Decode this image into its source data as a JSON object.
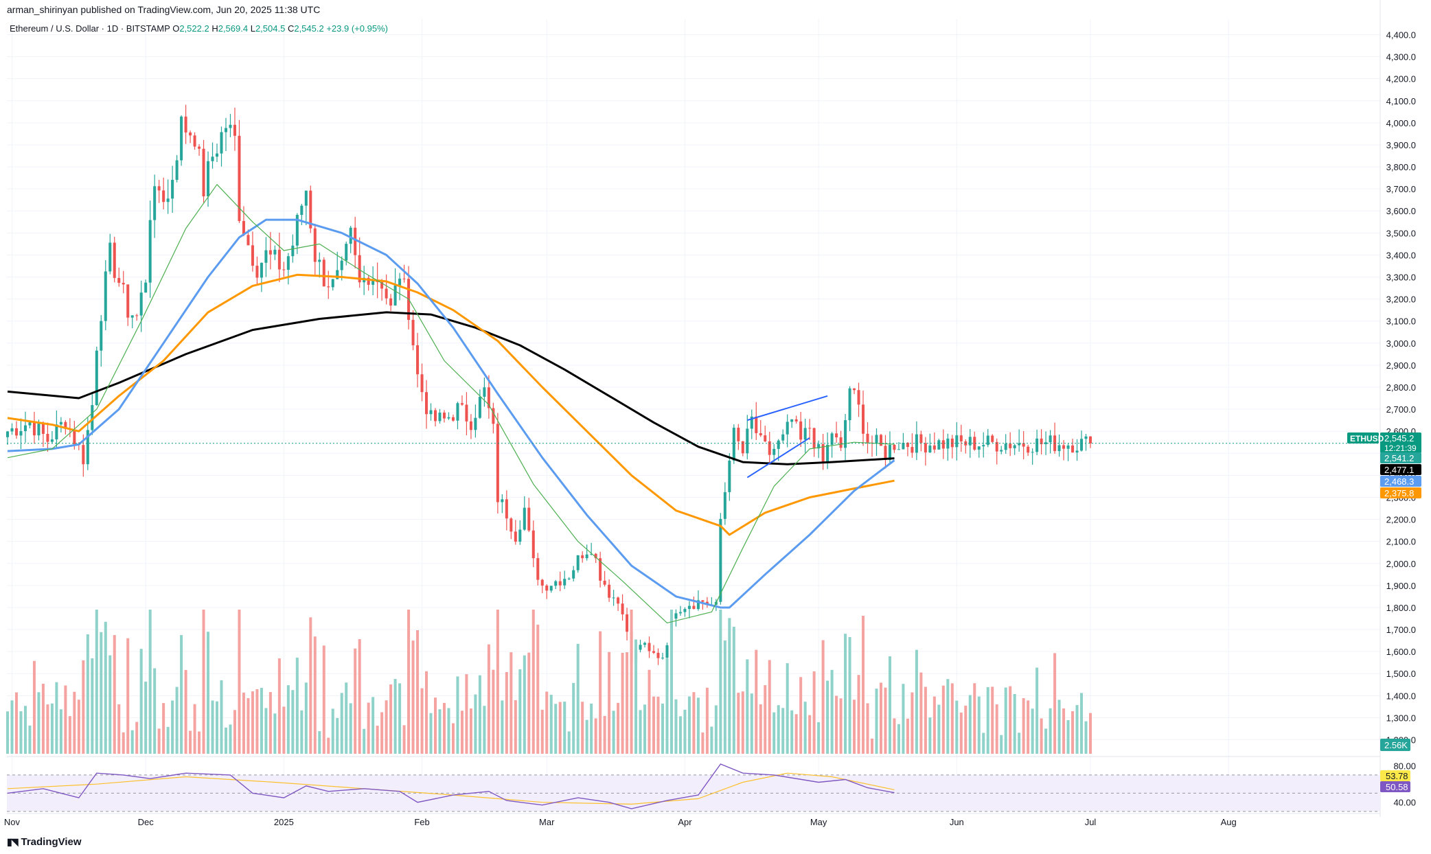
{
  "header": {
    "published_line": "arman_shirinyan published on TradingView.com, Jun 20, 2025 11:38 UTC"
  },
  "symbol": {
    "name": "Ethereum / U.S. Dollar · 1D · BITSTAMP",
    "o_label": "O",
    "o": "2,522.2",
    "h_label": "H",
    "h": "2,569.4",
    "l_label": "L",
    "l": "2,504.5",
    "c_label": "C",
    "c": "2,545.2",
    "change": "+23.9 (+0.95%)"
  },
  "footer": {
    "logo_text": "TradingView"
  },
  "colors": {
    "up": "#26a69a",
    "down": "#ef5350",
    "vol_up": "#8fd2ca",
    "vol_down": "#f5a3a1",
    "sma_black": "#000000",
    "sma_orange": "#ff9800",
    "sma_blue": "#5b9cf0",
    "sma_green": "#4caf50",
    "rsi": "#7e57c2",
    "rsi_ma": "#fbc02d"
  },
  "chart_data": [
    {
      "type": "candlestick",
      "title": "Ethereum / U.S. Dollar · 1D · BITSTAMP",
      "y_ticks": [
        "4,400.0",
        "4,300.0",
        "4,200.0",
        "4,100.0",
        "4,000.0",
        "3,900.0",
        "3,800.0",
        "3,700.0",
        "3,600.0",
        "3,500.0",
        "3,400.0",
        "3,300.0",
        "3,200.0",
        "3,100.0",
        "3,000.0",
        "2,900.0",
        "2,800.0",
        "2,700.0",
        "2,600.0",
        "2,500.0",
        "2,400.0",
        "2,300.0",
        "2,200.0",
        "2,100.0",
        "2,000.0",
        "1,900.0",
        "1,800.0",
        "1,700.0",
        "1,600.0",
        "1,500.0",
        "1,400.0",
        "1,300.0",
        "1,200.0"
      ],
      "y_tick_values": [
        4400,
        4300,
        4200,
        4100,
        4000,
        3900,
        3800,
        3700,
        3600,
        3500,
        3400,
        3300,
        3200,
        3100,
        3000,
        2900,
        2800,
        2700,
        2600,
        2500,
        2400,
        2300,
        2200,
        2100,
        2000,
        1900,
        1800,
        1700,
        1600,
        1500,
        1400,
        1300,
        1200
      ],
      "ylim": [
        1130,
        4470
      ],
      "x_labels": [
        "Nov",
        "Dec",
        "2025",
        "Feb",
        "Mar",
        "Apr",
        "May",
        "Jun",
        "Jul",
        "Aug"
      ],
      "x_label_days": [
        1,
        31,
        62,
        93,
        121,
        152,
        182,
        213,
        243,
        274
      ],
      "x_start_date": "2024-10-20",
      "last_day": 243,
      "price_points": [
        {
          "d": 0,
          "p": 2600
        },
        {
          "d": 5,
          "p": 2640
        },
        {
          "d": 9,
          "p": 2560
        },
        {
          "d": 13,
          "p": 2650
        },
        {
          "d": 17,
          "p": 2480
        },
        {
          "d": 19,
          "p": 2720
        },
        {
          "d": 20,
          "p": 3000
        },
        {
          "d": 21,
          "p": 3150
        },
        {
          "d": 23,
          "p": 3400
        },
        {
          "d": 25,
          "p": 3280
        },
        {
          "d": 27,
          "p": 3150
        },
        {
          "d": 29,
          "p": 3120
        },
        {
          "d": 31,
          "p": 3300
        },
        {
          "d": 32,
          "p": 3600
        },
        {
          "d": 34,
          "p": 3700
        },
        {
          "d": 36,
          "p": 3650
        },
        {
          "d": 39,
          "p": 3990
        },
        {
          "d": 42,
          "p": 3950
        },
        {
          "d": 44,
          "p": 3700
        },
        {
          "d": 46,
          "p": 3850
        },
        {
          "d": 49,
          "p": 3990
        },
        {
          "d": 51,
          "p": 3920
        },
        {
          "d": 52,
          "p": 3600
        },
        {
          "d": 54,
          "p": 3450
        },
        {
          "d": 56,
          "p": 3350
        },
        {
          "d": 58,
          "p": 3400
        },
        {
          "d": 60,
          "p": 3370
        },
        {
          "d": 62,
          "p": 3340
        },
        {
          "d": 64,
          "p": 3450
        },
        {
          "d": 66,
          "p": 3630
        },
        {
          "d": 67,
          "p": 3700
        },
        {
          "d": 69,
          "p": 3400
        },
        {
          "d": 71,
          "p": 3300
        },
        {
          "d": 73,
          "p": 3260
        },
        {
          "d": 75,
          "p": 3320
        },
        {
          "d": 77,
          "p": 3480
        },
        {
          "d": 79,
          "p": 3260
        },
        {
          "d": 81,
          "p": 3320
        },
        {
          "d": 84,
          "p": 3280
        },
        {
          "d": 86,
          "p": 3150
        },
        {
          "d": 88,
          "p": 3320
        },
        {
          "d": 90,
          "p": 3160
        },
        {
          "d": 92,
          "p": 2850
        },
        {
          "d": 95,
          "p": 2650
        },
        {
          "d": 98,
          "p": 2650
        },
        {
          "d": 101,
          "p": 2700
        },
        {
          "d": 104,
          "p": 2650
        },
        {
          "d": 107,
          "p": 2780
        },
        {
          "d": 109,
          "p": 2600
        },
        {
          "d": 110,
          "p": 2300
        },
        {
          "d": 112,
          "p": 2230
        },
        {
          "d": 114,
          "p": 2130
        },
        {
          "d": 116,
          "p": 2250
        },
        {
          "d": 118,
          "p": 2000
        },
        {
          "d": 120,
          "p": 1900
        },
        {
          "d": 123,
          "p": 1920
        },
        {
          "d": 126,
          "p": 1950
        },
        {
          "d": 129,
          "p": 2050
        },
        {
          "d": 131,
          "p": 2080
        },
        {
          "d": 133,
          "p": 1950
        },
        {
          "d": 135,
          "p": 1870
        },
        {
          "d": 138,
          "p": 1800
        },
        {
          "d": 140,
          "p": 1550
        },
        {
          "d": 142,
          "p": 1640
        },
        {
          "d": 144,
          "p": 1590
        },
        {
          "d": 147,
          "p": 1580
        },
        {
          "d": 150,
          "p": 1800
        },
        {
          "d": 153,
          "p": 1820
        },
        {
          "d": 156,
          "p": 1830
        },
        {
          "d": 159,
          "p": 1800
        },
        {
          "d": 160,
          "p": 2200
        },
        {
          "d": 161,
          "p": 2330
        },
        {
          "d": 162,
          "p": 2500
        },
        {
          "d": 163,
          "p": 2580
        },
        {
          "d": 165,
          "p": 2500
        },
        {
          "d": 167,
          "p": 2650
        },
        {
          "d": 169,
          "p": 2540
        },
        {
          "d": 171,
          "p": 2500
        },
        {
          "d": 174,
          "p": 2560
        },
        {
          "d": 176,
          "p": 2650
        },
        {
          "d": 178,
          "p": 2550
        },
        {
          "d": 180,
          "p": 2620
        },
        {
          "d": 182,
          "p": 2500
        },
        {
          "d": 183,
          "p": 2450
        },
        {
          "d": 185,
          "p": 2600
        },
        {
          "d": 187,
          "p": 2500
        },
        {
          "d": 189,
          "p": 2800
        },
        {
          "d": 191,
          "p": 2700
        },
        {
          "d": 193,
          "p": 2560
        },
        {
          "d": 195,
          "p": 2540
        },
        {
          "d": 197,
          "p": 2500
        },
        {
          "d": 199,
          "p": 2545.2
        }
      ],
      "moving_averages": [
        {
          "color": "#000000",
          "points": [
            [
              0,
              2780
            ],
            [
              16,
              2750
            ],
            [
              25,
              2820
            ],
            [
              40,
              2950
            ],
            [
              55,
              3060
            ],
            [
              70,
              3110
            ],
            [
              85,
              3140
            ],
            [
              95,
              3130
            ],
            [
              105,
              3070
            ],
            [
              115,
              2990
            ],
            [
              125,
              2880
            ],
            [
              135,
              2760
            ],
            [
              145,
              2640
            ],
            [
              155,
              2530
            ],
            [
              165,
              2460
            ],
            [
              175,
              2450
            ],
            [
              185,
              2460
            ],
            [
              199,
              2477.1
            ]
          ]
        },
        {
          "color": "#ff9800",
          "points": [
            [
              0,
              2660
            ],
            [
              10,
              2630
            ],
            [
              16,
              2600
            ],
            [
              25,
              2760
            ],
            [
              35,
              2920
            ],
            [
              45,
              3140
            ],
            [
              55,
              3260
            ],
            [
              65,
              3310
            ],
            [
              75,
              3300
            ],
            [
              85,
              3280
            ],
            [
              92,
              3230
            ],
            [
              100,
              3150
            ],
            [
              110,
              3010
            ],
            [
              120,
              2800
            ],
            [
              130,
              2600
            ],
            [
              140,
              2400
            ],
            [
              150,
              2240
            ],
            [
              160,
              2170
            ],
            [
              162,
              2130
            ],
            [
              170,
              2230
            ],
            [
              180,
              2300
            ],
            [
              190,
              2340
            ],
            [
              199,
              2375.8
            ]
          ]
        },
        {
          "color": "#5b9cf0",
          "points": [
            [
              0,
              2510
            ],
            [
              10,
              2520
            ],
            [
              16,
              2540
            ],
            [
              25,
              2700
            ],
            [
              35,
              3000
            ],
            [
              45,
              3300
            ],
            [
              52,
              3480
            ],
            [
              58,
              3560
            ],
            [
              65,
              3560
            ],
            [
              75,
              3500
            ],
            [
              85,
              3400
            ],
            [
              92,
              3270
            ],
            [
              100,
              3070
            ],
            [
              110,
              2770
            ],
            [
              120,
              2480
            ],
            [
              130,
              2220
            ],
            [
              140,
              1990
            ],
            [
              150,
              1850
            ],
            [
              160,
              1800
            ],
            [
              162,
              1800
            ],
            [
              170,
              1950
            ],
            [
              180,
              2130
            ],
            [
              190,
              2330
            ],
            [
              199,
              2468.3
            ]
          ]
        },
        {
          "color": "#4caf50",
          "points": [
            [
              0,
              2480
            ],
            [
              10,
              2520
            ],
            [
              20,
              2700
            ],
            [
              30,
              3100
            ],
            [
              40,
              3520
            ],
            [
              47,
              3720
            ],
            [
              55,
              3550
            ],
            [
              62,
              3420
            ],
            [
              70,
              3450
            ],
            [
              80,
              3320
            ],
            [
              90,
              3200
            ],
            [
              98,
              2920
            ],
            [
              108,
              2720
            ],
            [
              118,
              2360
            ],
            [
              128,
              2100
            ],
            [
              138,
              1920
            ],
            [
              148,
              1730
            ],
            [
              158,
              1780
            ],
            [
              165,
              2070
            ],
            [
              172,
              2350
            ],
            [
              180,
              2520
            ],
            [
              190,
              2550
            ],
            [
              199,
              2541.2
            ]
          ]
        }
      ],
      "trendlines": [
        {
          "from": [
            166,
            2650
          ],
          "to": [
            184,
            2760
          ]
        },
        {
          "from": [
            166,
            2390
          ],
          "to": [
            180,
            2570
          ]
        }
      ],
      "price_tags": [
        {
          "label": "ETHUSD",
          "value": "2,545.2",
          "sub": "12:21:39",
          "y": 2545.2,
          "color": "#089981"
        },
        {
          "value": "2,541.2",
          "y": 2541.2,
          "color": "#26a69a"
        },
        {
          "value": "2,477.1",
          "y": 2477.1,
          "color": "#000000"
        },
        {
          "value": "2,468.3",
          "y": 2468.3,
          "color": "#5b9cf0"
        },
        {
          "value": "2,375.8",
          "y": 2375.8,
          "color": "#ff9800"
        }
      ]
    },
    {
      "type": "bar",
      "title": "Volume",
      "last_value_label": "2.56K",
      "volume_levels": [
        3,
        4,
        5,
        6,
        7,
        8
      ],
      "volume_amplitude": 1.0
    },
    {
      "type": "line",
      "title": "RSI",
      "y_ticks": [
        "80.00",
        "40.00"
      ],
      "y_tick_values": [
        80,
        40
      ],
      "ylim": [
        33,
        88
      ],
      "band": [
        70,
        30
      ],
      "rsi_points": [
        [
          0,
          50
        ],
        [
          8,
          55
        ],
        [
          16,
          45
        ],
        [
          20,
          72
        ],
        [
          26,
          70
        ],
        [
          32,
          66
        ],
        [
          40,
          72
        ],
        [
          50,
          70
        ],
        [
          55,
          50
        ],
        [
          62,
          45
        ],
        [
          67,
          58
        ],
        [
          72,
          52
        ],
        [
          80,
          55
        ],
        [
          88,
          52
        ],
        [
          92,
          40
        ],
        [
          100,
          48
        ],
        [
          108,
          52
        ],
        [
          112,
          42
        ],
        [
          120,
          37
        ],
        [
          128,
          45
        ],
        [
          135,
          40
        ],
        [
          140,
          33
        ],
        [
          148,
          42
        ],
        [
          155,
          48
        ],
        [
          160,
          82
        ],
        [
          165,
          72
        ],
        [
          172,
          70
        ],
        [
          182,
          62
        ],
        [
          188,
          65
        ],
        [
          193,
          56
        ],
        [
          199,
          50.58
        ]
      ],
      "rsi_ma_points": [
        [
          0,
          55
        ],
        [
          20,
          60
        ],
        [
          40,
          68
        ],
        [
          60,
          62
        ],
        [
          80,
          55
        ],
        [
          100,
          48
        ],
        [
          120,
          40
        ],
        [
          140,
          38
        ],
        [
          155,
          44
        ],
        [
          165,
          62
        ],
        [
          175,
          72
        ],
        [
          185,
          68
        ],
        [
          199,
          53.78
        ]
      ],
      "rsi_value": "50.58",
      "rsi_ma_value": "53.78"
    }
  ]
}
